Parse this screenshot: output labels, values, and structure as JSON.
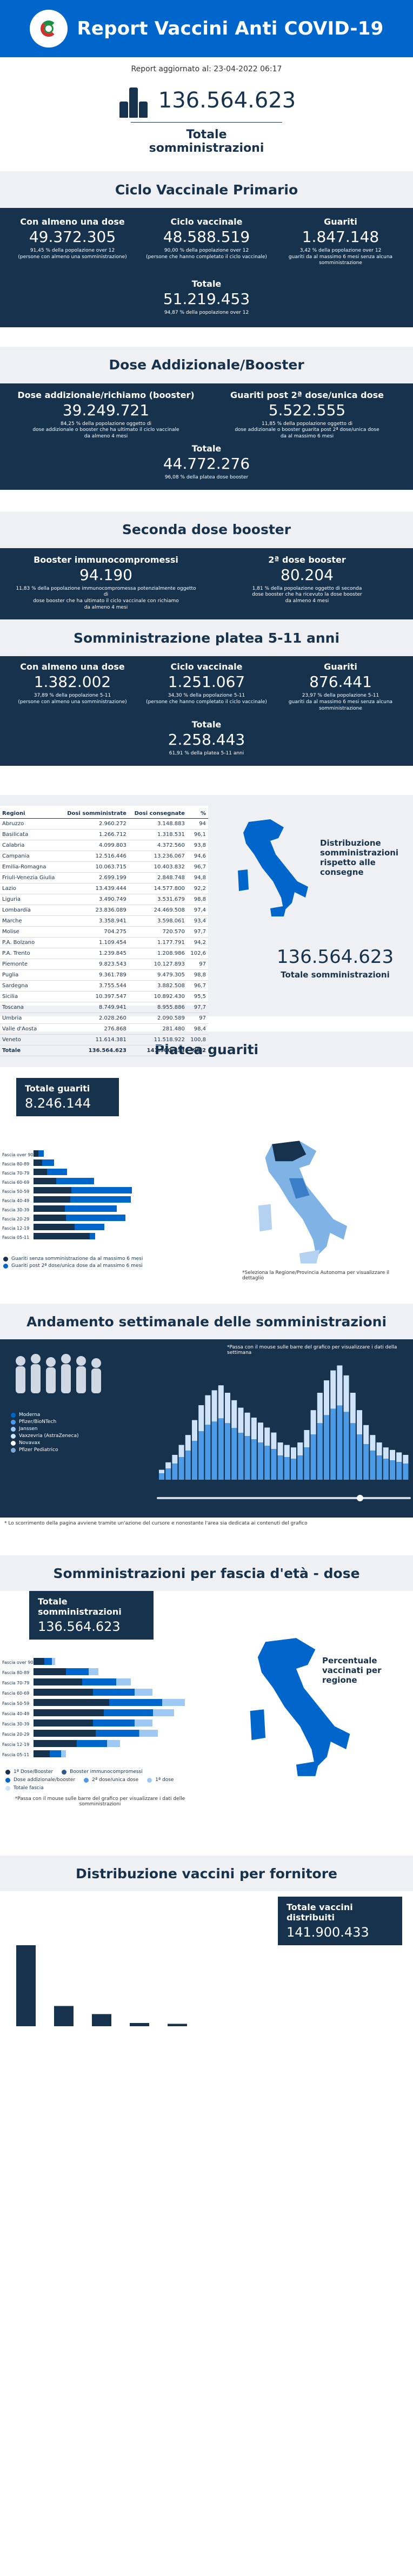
{
  "header": {
    "title": "Report Vaccini Anti COVID-19"
  },
  "updated": "Report aggiornato al: 23-04-2022 06:17",
  "hero": {
    "value": "136.564.623",
    "label": "Totale somministrazioni"
  },
  "primario": {
    "title": "Ciclo Vaccinale Primario",
    "cells": [
      {
        "label": "Con almeno una dose",
        "value": "49.372.305",
        "note": "91,45 % della popolazione over 12\n(persone con almeno una somministrazione)"
      },
      {
        "label": "Ciclo vaccinale",
        "value": "48.588.519",
        "note": "90,00 % della popolazione over 12\n(persone che hanno completato il ciclo vaccinale)"
      },
      {
        "label": "Guariti",
        "value": "1.847.148",
        "note": "3,42 % della popolazione over 12\nguariti da al massimo 6 mesi senza alcuna somministrazione"
      }
    ],
    "total_label": "Totale",
    "total_value": "51.219.453",
    "total_note": "94,87 % della popolazione over 12"
  },
  "booster": {
    "title": "Dose Addizionale/Booster",
    "cells": [
      {
        "label": "Dose addizionale/richiamo (booster)",
        "value": "39.249.721",
        "note": "84,25 % della popolazione oggetto di\ndose addizionale o booster che ha ultimato il ciclo vaccinale\nda almeno 4 mesi"
      },
      {
        "label": "Guariti post 2ª dose/unica dose",
        "value": "5.522.555",
        "note": "11,85 % della popolazione oggetto di\ndose addizionale o booster guarita post 2ª dose/unica dose\nda al massimo 6 mesi"
      }
    ],
    "total_label": "Totale",
    "total_value": "44.772.276",
    "total_note": "96,08 % della platea dose booster"
  },
  "second_booster": {
    "title": "Seconda dose booster",
    "cells": [
      {
        "label": "Booster immunocompromessi",
        "value": "94.190",
        "note": "11,83 % della popolazione immunocompromessa potenzialmente oggetto di\ndose booster che ha ultimato il ciclo vaccinale con richiamo\nda almeno 4 mesi"
      },
      {
        "label": "2ª dose booster",
        "value": "80.204",
        "note": "1,81 % della popolazione oggetto di seconda\ndose booster che ha ricevuto la dose booster\nda almeno 4 mesi"
      }
    ]
  },
  "kids": {
    "title": "Somministrazione platea 5-11 anni",
    "cells": [
      {
        "label": "Con almeno una dose",
        "value": "1.382.002",
        "note": "37,89 % della popolazione 5-11\n(persone con almeno una somministrazione)"
      },
      {
        "label": "Ciclo vaccinale",
        "value": "1.251.067",
        "note": "34,30 % della popolazione 5-11\n(persone che hanno completato il ciclo vaccinale)"
      },
      {
        "label": "Guariti",
        "value": "876.441",
        "note": "23,97 % della popolazione 5-11\nguariti da al massimo 6 mesi senza alcuna somministrazione"
      }
    ],
    "total_label": "Totale",
    "total_value": "2.258.443",
    "total_note": "61,91 % della platea 5-11 anni"
  },
  "regions": {
    "columns": [
      "Regioni",
      "Dosi somministrate",
      "Dosi consegnate",
      "%"
    ],
    "rows": [
      [
        "Abruzzo",
        "2.960.272",
        "3.148.883",
        "94"
      ],
      [
        "Basilicata",
        "1.266.712",
        "1.318.531",
        "96,1"
      ],
      [
        "Calabria",
        "4.099.803",
        "4.372.560",
        "93,8"
      ],
      [
        "Campania",
        "12.516.446",
        "13.236.067",
        "94,6"
      ],
      [
        "Emilia-Romagna",
        "10.063.715",
        "10.403.832",
        "96,7"
      ],
      [
        "Friuli-Venezia Giulia",
        "2.699.199",
        "2.848.748",
        "94,8"
      ],
      [
        "Lazio",
        "13.439.444",
        "14.577.800",
        "92,2"
      ],
      [
        "Liguria",
        "3.490.749",
        "3.531.679",
        "98,8"
      ],
      [
        "Lombardia",
        "23.836.089",
        "24.469.508",
        "97,4"
      ],
      [
        "Marche",
        "3.358.941",
        "3.598.061",
        "93,4"
      ],
      [
        "Molise",
        "704.275",
        "720.570",
        "97,7"
      ],
      [
        "P.A. Bolzano",
        "1.109.454",
        "1.177.791",
        "94,2"
      ],
      [
        "P.A. Trento",
        "1.239.845",
        "1.208.986",
        "102,6"
      ],
      [
        "Piemonte",
        "9.823.543",
        "10.127.893",
        "97"
      ],
      [
        "Puglia",
        "9.361.789",
        "9.479.305",
        "98,8"
      ],
      [
        "Sardegna",
        "3.755.544",
        "3.882.508",
        "96,7"
      ],
      [
        "Sicilia",
        "10.397.547",
        "10.892.430",
        "95,5"
      ],
      [
        "Toscana",
        "8.749.941",
        "8.955.886",
        "97,7"
      ],
      [
        "Umbria",
        "2.028.260",
        "2.090.589",
        "97"
      ],
      [
        "Valle d'Aosta",
        "276.868",
        "281.480",
        "98,4"
      ],
      [
        "Veneto",
        "11.614.381",
        "11.518.922",
        "100,8"
      ]
    ],
    "total": [
      "Totale",
      "136.564.623",
      "141.900.433",
      "96,2"
    ]
  },
  "map1": {
    "title": "Distribuzione somministrazioni rispetto alle consegne",
    "value": "136.564.623",
    "label": "Totale somministrazioni"
  },
  "guariti": {
    "title": "Platea guariti",
    "box_label": "Totale guariti",
    "box_value": "8.246.144",
    "age_groups": [
      "Fascia over 90",
      "Fascia 80-89",
      "Fascia 70-79",
      "Fascia 60-69",
      "Fascia 50-59",
      "Fascia 40-49",
      "Fascia 30-39",
      "Fascia 20-29",
      "Fascia 12-19",
      "Fascia 05-11"
    ],
    "legend": [
      "Guariti senza somministrazione da al massimo 6 mesi",
      "Guariti post 2ª dose/unica dose da al massimo 6 mesi"
    ],
    "map_note": "*Seleziona la Regione/Provincia Autonoma per visualizzare il dettaglio",
    "colors": {
      "a": "#17324d",
      "b": "#0066cc"
    }
  },
  "weekly": {
    "title": "Andamento settimanale delle somministrazioni",
    "note": "*Passa con il mouse sulle barre del grafico per visualizzare i dati della settimana",
    "legend": [
      "Moderna",
      "Pfizer/BioNTech",
      "Janssen",
      "Vaxzevria (AstraZeneca)",
      "Novavax",
      "Pfizer Pediatrico"
    ],
    "footer": "* Lo scorrimento della pagina avviene tramite un'azione del cursore e nonostante l'area sia dedicata ai contenuti del grafico"
  },
  "eta": {
    "title": "Somministrazioni per fascia d'età - dose",
    "box_label": "Totale somministrazioni",
    "box_value": "136.564.623",
    "map_title": "Percentuale vaccinati per regione",
    "age_groups": [
      "Fascia over 90",
      "Fascia 80-89",
      "Fascia 70-79",
      "Fascia 60-69",
      "Fascia 50-59",
      "Fascia 40-49",
      "Fascia 30-39",
      "Fascia 20-29",
      "Fascia 12-19",
      "Fascia 05-11"
    ],
    "legend": [
      "1ª Dose/Booster",
      "Booster immunocompromessi",
      "Dose addizionale/booster",
      "2ª dose/unica dose",
      "1ª dose",
      "Totale fascia"
    ],
    "note": "*Passa con il mouse sulle barre del grafico per visualizzare i dati delle somministrazioni"
  },
  "fornitore": {
    "title": "Distribuzione vaccini per fornitore",
    "box_label": "Totale vaccini distribuiti",
    "box_value": "141.900.433"
  },
  "chart_data": [
    {
      "type": "bar",
      "title": "Platea guariti",
      "categories": [
        "Fascia over 90",
        "Fascia 80-89",
        "Fascia 70-79",
        "Fascia 60-69",
        "Fascia 50-59",
        "Fascia 40-49",
        "Fascia 30-39",
        "Fascia 20-29",
        "Fascia 12-19",
        "Fascia 05-11"
      ],
      "series": [
        {
          "name": "Guariti senza somministrazione da al massimo 6 mesi",
          "values": [
            9,
            16,
            25,
            42,
            70,
            68,
            58,
            60,
            76,
            104
          ]
        },
        {
          "name": "Guariti post 2ª dose/unica dose da al massimo 6 mesi",
          "values": [
            10,
            22,
            37,
            70,
            112,
            112,
            96,
            110,
            55,
            10
          ]
        }
      ]
    },
    {
      "type": "bar",
      "title": "Andamento settimanale delle somministrazioni",
      "values": [
        8,
        14,
        20,
        28,
        36,
        48,
        60,
        68,
        72,
        76,
        70,
        64,
        58,
        54,
        50,
        46,
        42,
        38,
        30,
        28,
        26,
        30,
        40,
        56,
        70,
        80,
        88,
        92,
        84,
        70,
        56,
        44,
        36,
        30,
        26,
        24,
        22,
        20
      ]
    },
    {
      "type": "bar",
      "title": "Somministrazioni per fascia d'età - dose",
      "categories": [
        "Fascia over 90",
        "Fascia 80-89",
        "Fascia 70-79",
        "Fascia 60-69",
        "Fascia 50-59",
        "Fascia 40-49",
        "Fascia 30-39",
        "Fascia 20-29",
        "Fascia 12-19",
        "Fascia 05-11"
      ],
      "values": [
        20,
        60,
        90,
        110,
        140,
        130,
        110,
        115,
        80,
        30
      ]
    },
    {
      "type": "bar",
      "title": "Distribuzione vaccini per fornitore",
      "values": [
        100,
        25,
        15,
        4,
        3
      ]
    }
  ]
}
